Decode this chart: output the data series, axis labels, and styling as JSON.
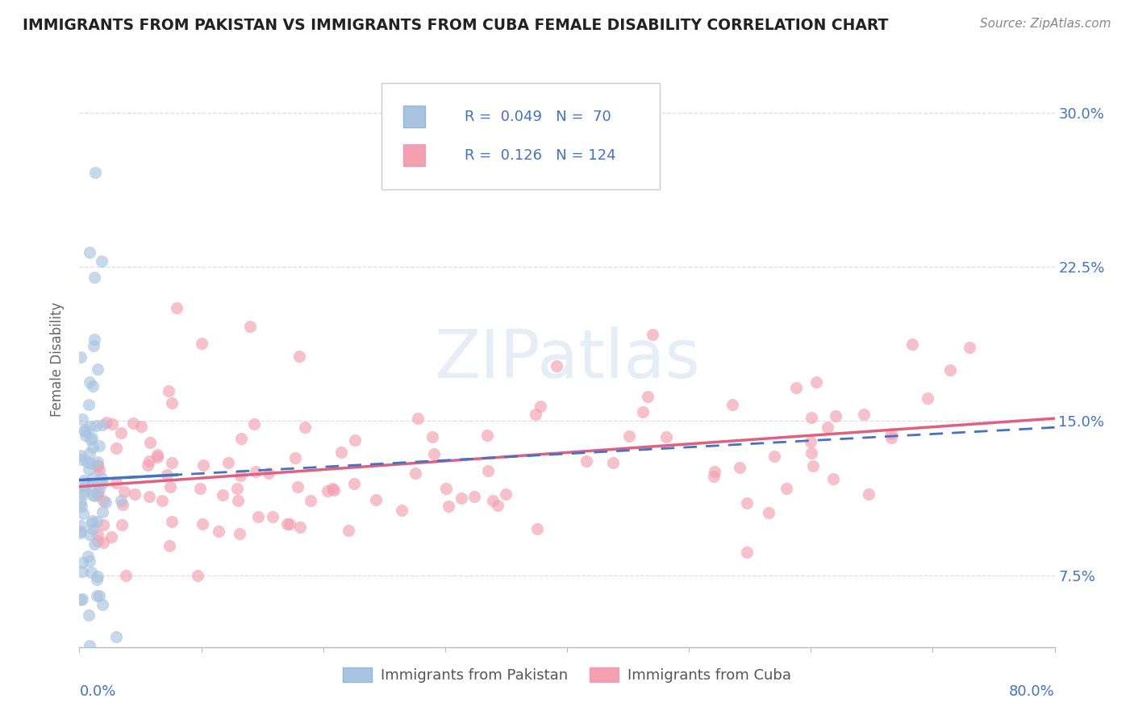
{
  "title": "IMMIGRANTS FROM PAKISTAN VS IMMIGRANTS FROM CUBA FEMALE DISABILITY CORRELATION CHART",
  "source": "Source: ZipAtlas.com",
  "ylabel": "Female Disability",
  "y_ticks": [
    0.075,
    0.15,
    0.225,
    0.3
  ],
  "y_tick_labels": [
    "7.5%",
    "15.0%",
    "22.5%",
    "30.0%"
  ],
  "x_lim": [
    0.0,
    0.8
  ],
  "y_lim": [
    0.04,
    0.32
  ],
  "series1_label": "Immigrants from Pakistan",
  "series2_label": "Immigrants from Cuba",
  "series1_color": "#a8c4e0",
  "series2_color": "#f4a0b0",
  "series1_line_color": "#4472c4",
  "series2_line_color": "#e06080",
  "series1_R": 0.049,
  "series1_N": 70,
  "series2_R": 0.126,
  "series2_N": 124,
  "watermark": "ZIPatlas",
  "axis_color": "#4472c4",
  "grid_color": "#d8dfe8",
  "background_color": "#ffffff"
}
